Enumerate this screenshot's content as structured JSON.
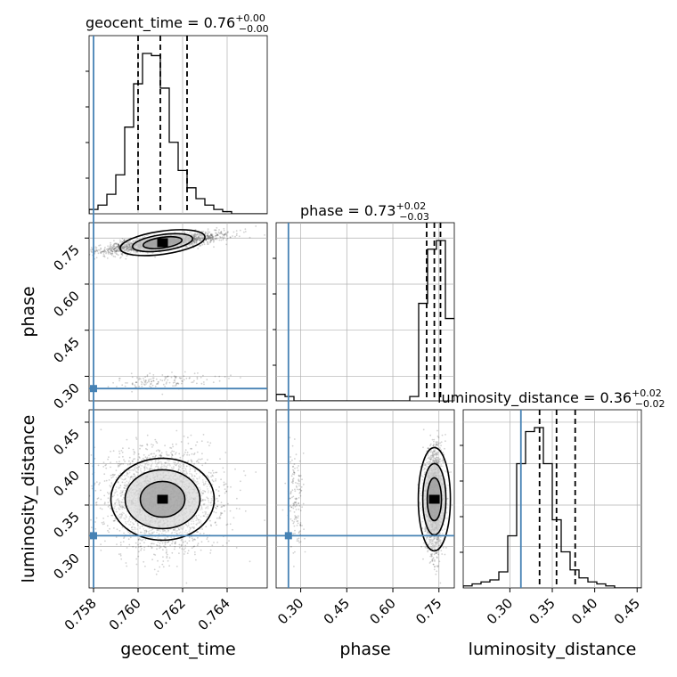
{
  "chart_data": {
    "type": "corner",
    "parameters": [
      "geocent_time",
      "phase",
      "luminosity_distance"
    ],
    "truths": {
      "geocent_time": 0.758,
      "phase": 0.26,
      "luminosity_distance": 0.313
    },
    "colors": {
      "truth": "#4682b4",
      "hist": "#000000",
      "grid": "#b0b0b0",
      "samples": "#000000"
    },
    "grid": true,
    "panels": {
      "geocent_time": {
        "title": {
          "prefix": "geocent_time = 0.76",
          "sup": "+0.00",
          "sub": "−0.00"
        },
        "xlim": [
          0.7578,
          0.7658
        ],
        "hist_edges_start": 0.7578,
        "hist_bin_width": 0.0004,
        "hist_counts": [
          2,
          4,
          9,
          18,
          40,
          60,
          74,
          73,
          58,
          33,
          20,
          12,
          7,
          4,
          2,
          1,
          0,
          0,
          0,
          0
        ],
        "quantiles": [
          0.76,
          0.761,
          0.7622
        ]
      },
      "phase": {
        "title": {
          "prefix": "phase = 0.73",
          "sup": "+0.02",
          "sub": "−0.03"
        },
        "xlim": [
          0.22,
          0.8
        ],
        "xticks": [
          "0.30",
          "0.45",
          "0.60",
          "0.75"
        ],
        "xtick_values": [
          0.3,
          0.45,
          0.6,
          0.75
        ],
        "hist_edges_start": 0.22,
        "hist_bin_width": 0.029,
        "hist_counts": [
          3,
          2,
          0,
          0,
          0,
          0,
          0,
          0,
          0,
          0,
          0,
          0,
          0,
          0,
          0,
          2,
          45,
          70,
          74,
          38
        ],
        "quantiles": [
          0.71,
          0.735,
          0.755
        ]
      },
      "luminosity_distance": {
        "title": {
          "prefix": "luminosity_distance = 0.36",
          "sup": "+0.02",
          "sub": "−0.02"
        },
        "xlim": [
          0.245,
          0.455
        ],
        "xticks": [
          "0.30",
          "0.35",
          "0.40",
          "0.45"
        ],
        "xtick_values": [
          0.3,
          0.35,
          0.4,
          0.45
        ],
        "hist_edges_start": 0.245,
        "hist_bin_width": 0.0105,
        "hist_counts": [
          1,
          2,
          3,
          4,
          8,
          26,
          62,
          78,
          80,
          62,
          34,
          18,
          9,
          5,
          3,
          2,
          1,
          0,
          0,
          0
        ],
        "quantiles": [
          0.335,
          0.355,
          0.377
        ]
      }
    },
    "x_axis_ticks": {
      "geocent_time": {
        "labels": [
          "0.758",
          "0.760",
          "0.762",
          "0.764"
        ],
        "values": [
          0.758,
          0.76,
          0.762,
          0.764
        ]
      }
    },
    "y_axis_ticks": {
      "phase": {
        "labels": [
          "0.30",
          "0.45",
          "0.60",
          "0.75"
        ],
        "values": [
          0.3,
          0.45,
          0.6,
          0.75
        ],
        "ylim": [
          0.22,
          0.8
        ]
      },
      "luminosity_distance": {
        "labels": [
          "0.30",
          "0.35",
          "0.40",
          "0.45"
        ],
        "values": [
          0.3,
          0.35,
          0.4,
          0.45
        ],
        "ylim": [
          0.25,
          0.465
        ]
      }
    },
    "axis_labels": {
      "x": [
        "geocent_time",
        "phase",
        "luminosity_distance"
      ],
      "y": [
        "phase",
        "luminosity_distance"
      ]
    },
    "posterior": {
      "geocent_time_mean": 0.7611,
      "geocent_time_sd": 0.0012,
      "phase_mode_main": 0.735,
      "phase_mode_main_sd": 0.018,
      "phase_secondary_mode": 0.27,
      "luminosity_distance_mean": 0.357,
      "luminosity_distance_sd": 0.028
    }
  }
}
